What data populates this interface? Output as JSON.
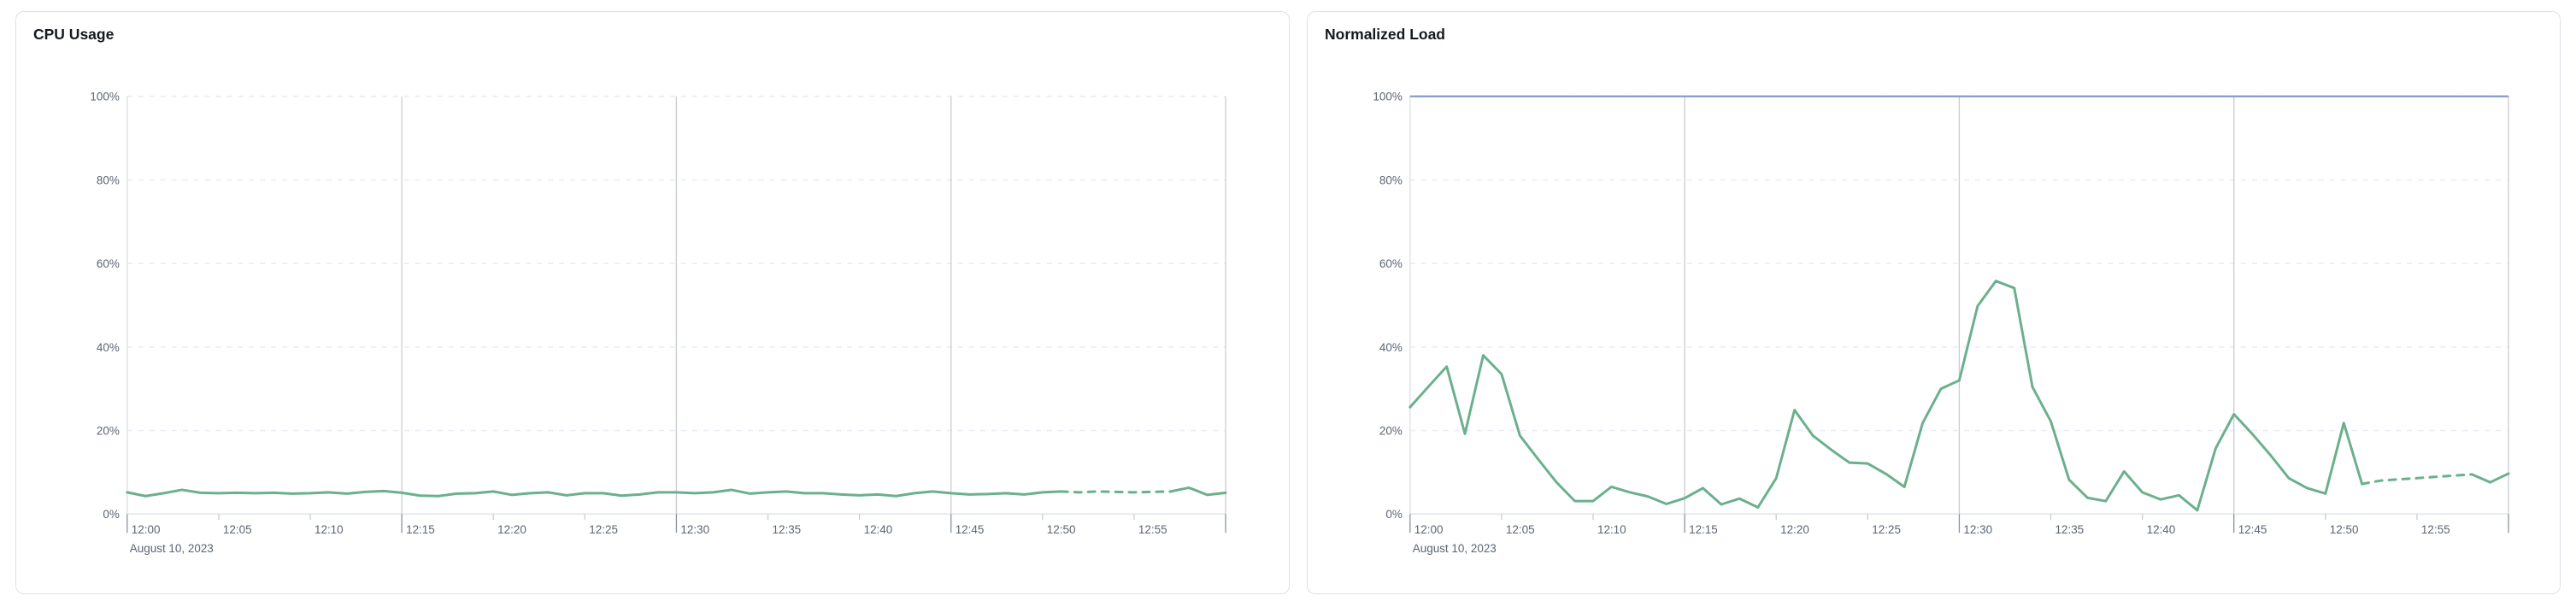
{
  "page": {
    "background_color": "#ffffff"
  },
  "chart_data": [
    {
      "type": "line",
      "title": "CPU Usage",
      "x_axis_date_label": "August 10, 2023",
      "x_start": "12:00",
      "x_end": "13:00",
      "x_interval_minutes": 1,
      "x_tick_labels": [
        "12:00",
        "12:05",
        "12:10",
        "12:15",
        "12:20",
        "12:25",
        "12:30",
        "12:35",
        "12:40",
        "12:45",
        "12:50",
        "12:55"
      ],
      "y_tick_labels": [
        "0%",
        "20%",
        "40%",
        "60%",
        "80%",
        "100%"
      ],
      "ylim": [
        0,
        100
      ],
      "grid": "horizontal dashed every 20%, solid vertical lines every 15 min, legend none",
      "series": [
        {
          "name": "cpu-usage",
          "color": "#6bb08d",
          "unit": "%",
          "style_segments": [
            {
              "from_index": 0,
              "to_index": 51,
              "style": "solid"
            },
            {
              "from_index": 51,
              "to_index": 57,
              "style": "dashed"
            },
            {
              "from_index": 57,
              "to_index": 60,
              "style": "solid"
            }
          ],
          "values": [
            5.2,
            4.3,
            5.0,
            5.8,
            5.1,
            5.0,
            5.1,
            5.0,
            5.1,
            4.9,
            5.0,
            5.2,
            4.9,
            5.3,
            5.5,
            5.1,
            4.4,
            4.3,
            4.9,
            5.0,
            5.4,
            4.6,
            5.0,
            5.2,
            4.5,
            5.0,
            5.0,
            4.4,
            4.7,
            5.2,
            5.2,
            5.0,
            5.2,
            5.8,
            4.9,
            5.2,
            5.4,
            5.0,
            5.0,
            4.7,
            4.5,
            4.7,
            4.3,
            5.0,
            5.4,
            5.0,
            4.7,
            4.8,
            5.0,
            4.7,
            5.2,
            5.4,
            5.2,
            5.4,
            5.3,
            5.2,
            5.3,
            5.4,
            6.3,
            4.6,
            5.1
          ]
        }
      ]
    },
    {
      "type": "line",
      "title": "Normalized Load",
      "x_axis_date_label": "August 10, 2023",
      "x_start": "12:00",
      "x_end": "13:00",
      "x_interval_minutes": 1,
      "x_tick_labels": [
        "12:00",
        "12:05",
        "12:10",
        "12:15",
        "12:20",
        "12:25",
        "12:30",
        "12:35",
        "12:40",
        "12:45",
        "12:50",
        "12:55"
      ],
      "y_tick_labels": [
        "0%",
        "20%",
        "40%",
        "60%",
        "80%",
        "100%"
      ],
      "ylim": [
        0,
        100
      ],
      "grid": "horizontal dashed every 20%, solid vertical lines every 15 min, legend none",
      "limit_line": {
        "name": "load-limit",
        "value": 100,
        "color": "#7b98c7"
      },
      "series": [
        {
          "name": "normalized-load",
          "color": "#6bb08d",
          "unit": "%",
          "style_segments": [
            {
              "from_index": 0,
              "to_index": 52,
              "style": "solid"
            },
            {
              "from_index": 52,
              "to_index": 58,
              "style": "dashed"
            },
            {
              "from_index": 58,
              "to_index": 60,
              "style": "solid"
            }
          ],
          "values": [
            25.6,
            30.5,
            35.3,
            19.2,
            38.0,
            33.5,
            18.8,
            13.1,
            7.6,
            3.1,
            3.1,
            6.5,
            5.2,
            4.2,
            2.4,
            3.8,
            6.2,
            2.3,
            3.7,
            1.6,
            8.6,
            24.9,
            18.8,
            15.4,
            12.3,
            12.1,
            9.6,
            6.5,
            21.8,
            30.0,
            32.0,
            49.8,
            55.8,
            54.1,
            30.4,
            22.2,
            8.2,
            3.9,
            3.1,
            10.2,
            5.2,
            3.5,
            4.5,
            0.9,
            15.7,
            23.9,
            19.2,
            14.1,
            8.6,
            6.2,
            4.9,
            21.8,
            7.2,
            8.0,
            8.3,
            8.6,
            8.9,
            9.2,
            9.5,
            7.6,
            9.7
          ]
        }
      ]
    }
  ],
  "colors": {
    "series_green": "#6bb08d",
    "limit_blue": "#7b98c7",
    "grid_dashed": "#e9ecf3",
    "axis_light": "#e0e3ea",
    "grid_major_vertical": "#c9ccd4",
    "tick_minor": "#c9ccd4",
    "tick_major": "#8b93a0",
    "label_text": "#5b6473",
    "title_text": "#14181f",
    "panel_border": "#dde1ea"
  }
}
